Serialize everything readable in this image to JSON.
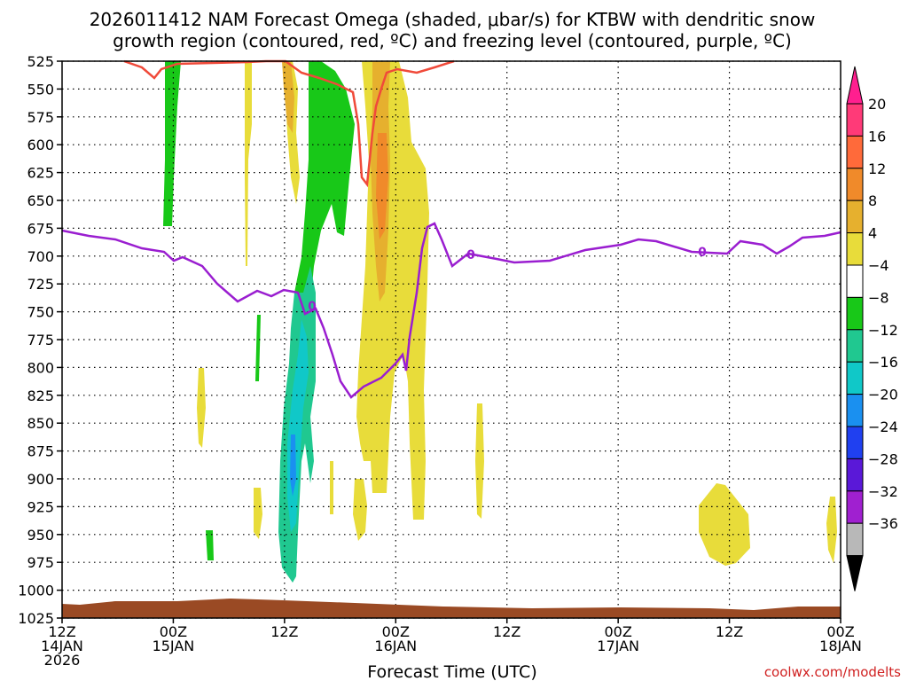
{
  "chart_data": {
    "type": "heatmap",
    "title_line1": "2026011412 NAM Forecast Omega (shaded, μbar/s) for KTBW with dendritic snow",
    "title_line2": "growth region (contoured, red, ºC) and freezing level (contoured, purple, ºC)",
    "xlabel": "Forecast Time (UTC)",
    "credit": "coolwx.com/modelts",
    "x_hours_range": [
      0,
      84
    ],
    "y_pressure_range": [
      1025,
      525
    ],
    "y_ticks": [
      525,
      550,
      575,
      600,
      625,
      650,
      675,
      700,
      725,
      750,
      775,
      800,
      825,
      850,
      875,
      900,
      925,
      950,
      975,
      1000,
      1025
    ],
    "x_ticks": [
      {
        "hour": 0,
        "line1": "12Z",
        "line2": "14JAN",
        "line3": "2026"
      },
      {
        "hour": 12,
        "line1": "00Z",
        "line2": "15JAN",
        "line3": ""
      },
      {
        "hour": 24,
        "line1": "12Z",
        "line2": "",
        "line3": ""
      },
      {
        "hour": 36,
        "line1": "00Z",
        "line2": "16JAN",
        "line3": ""
      },
      {
        "hour": 48,
        "line1": "12Z",
        "line2": "",
        "line3": ""
      },
      {
        "hour": 60,
        "line1": "00Z",
        "line2": "17JAN",
        "line3": ""
      },
      {
        "hour": 72,
        "line1": "12Z",
        "line2": "",
        "line3": ""
      },
      {
        "hour": 84,
        "line1": "00Z",
        "line2": "18JAN",
        "line3": ""
      }
    ],
    "colorbar": {
      "labels": [
        "20",
        "16",
        "12",
        "8",
        "4",
        "−4",
        "−8",
        "−12",
        "−16",
        "−20",
        "−24",
        "−28",
        "−32",
        "−36"
      ],
      "colors": [
        "#ff3a78",
        "#ff6a3a",
        "#f08a2a",
        "#e6b02e",
        "#e8dc3a",
        "#ffffff",
        "#18c818",
        "#20c890",
        "#10c8c8",
        "#1a90f0",
        "#2040f0",
        "#5a18d8",
        "#a020d0",
        "#b8b8b8"
      ],
      "top_color": "#ff1f8f",
      "bottom_color": "#000000"
    },
    "contour_labels": {
      "freezing": "0"
    },
    "colors": {
      "freezing_level": "#9a1ed0",
      "dendritic": "#f04a3a",
      "terrain": "#9a4a24",
      "credit": "#d02020"
    }
  }
}
